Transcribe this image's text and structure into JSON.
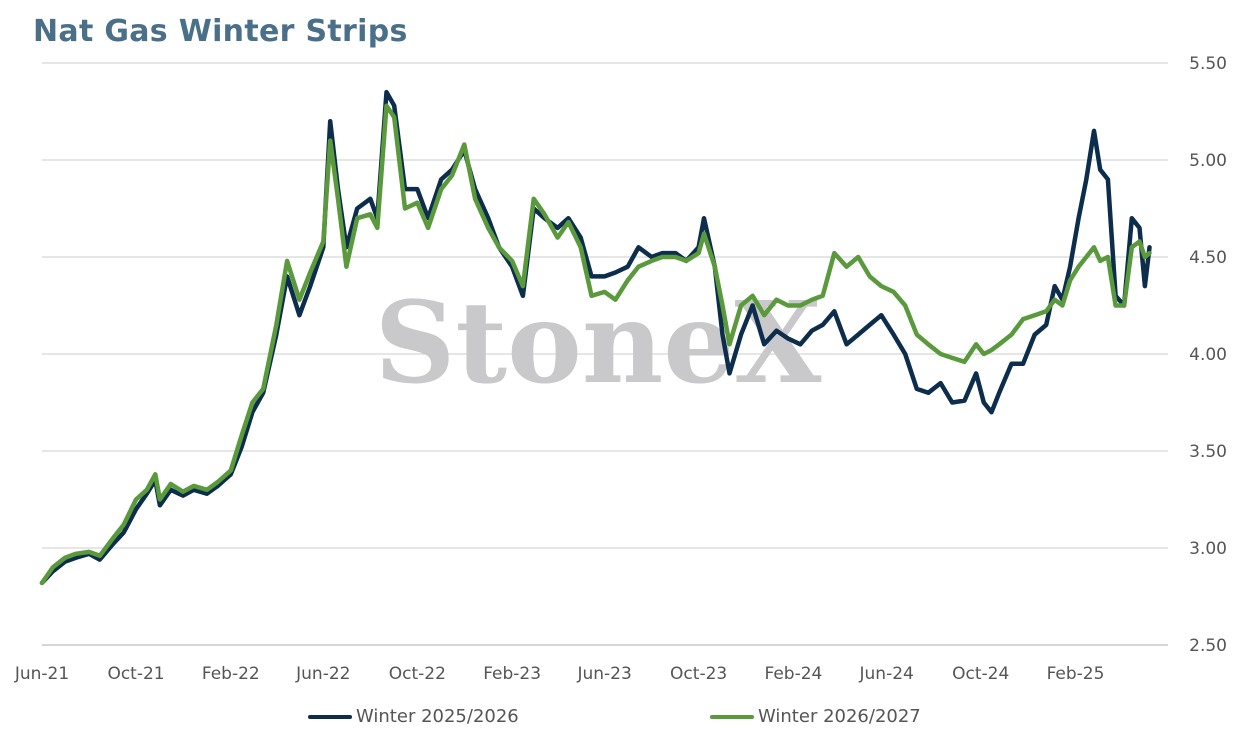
{
  "chart_data": {
    "type": "line",
    "title": "Nat Gas Winter Strips",
    "watermark": "StoneX",
    "x_tick_labels": [
      "Jun-21",
      "Oct-21",
      "Feb-22",
      "Jun-22",
      "Oct-22",
      "Feb-23",
      "Jun-23",
      "Oct-23",
      "Feb-24",
      "Jun-24",
      "Oct-24",
      "Feb-25"
    ],
    "x_range": [
      "2021-06-01",
      "2025-06-01"
    ],
    "y_tick_labels": [
      "2.50",
      "3.00",
      "3.50",
      "4.00",
      "4.50",
      "5.00",
      "5.50"
    ],
    "ylim": [
      2.5,
      5.5
    ],
    "y_axis_side": "right",
    "grid": "horizontal",
    "legend_position": "bottom",
    "series": [
      {
        "name": "Winter 2025/2026",
        "color": "#0d2d4d",
        "points": [
          [
            "2021-06-01",
            2.82
          ],
          [
            "2021-06-15",
            2.88
          ],
          [
            "2021-07-01",
            2.93
          ],
          [
            "2021-07-15",
            2.95
          ],
          [
            "2021-08-01",
            2.97
          ],
          [
            "2021-08-15",
            2.94
          ],
          [
            "2021-09-01",
            3.02
          ],
          [
            "2021-09-15",
            3.08
          ],
          [
            "2021-10-01",
            3.2
          ],
          [
            "2021-10-15",
            3.28
          ],
          [
            "2021-10-26",
            3.35
          ],
          [
            "2021-11-01",
            3.22
          ],
          [
            "2021-11-15",
            3.3
          ],
          [
            "2021-12-01",
            3.27
          ],
          [
            "2021-12-15",
            3.3
          ],
          [
            "2022-01-01",
            3.28
          ],
          [
            "2022-01-15",
            3.32
          ],
          [
            "2022-02-01",
            3.38
          ],
          [
            "2022-02-15",
            3.52
          ],
          [
            "2022-03-01",
            3.7
          ],
          [
            "2022-03-15",
            3.8
          ],
          [
            "2022-04-01",
            4.1
          ],
          [
            "2022-04-15",
            4.4
          ],
          [
            "2022-05-01",
            4.2
          ],
          [
            "2022-05-15",
            4.35
          ],
          [
            "2022-06-01",
            4.55
          ],
          [
            "2022-06-10",
            5.2
          ],
          [
            "2022-06-20",
            4.85
          ],
          [
            "2022-07-01",
            4.55
          ],
          [
            "2022-07-15",
            4.75
          ],
          [
            "2022-08-01",
            4.8
          ],
          [
            "2022-08-10",
            4.7
          ],
          [
            "2022-08-22",
            5.35
          ],
          [
            "2022-09-01",
            5.28
          ],
          [
            "2022-09-15",
            4.85
          ],
          [
            "2022-10-01",
            4.85
          ],
          [
            "2022-10-15",
            4.7
          ],
          [
            "2022-11-01",
            4.9
          ],
          [
            "2022-11-15",
            4.95
          ],
          [
            "2022-12-01",
            5.05
          ],
          [
            "2022-12-15",
            4.85
          ],
          [
            "2023-01-01",
            4.7
          ],
          [
            "2023-01-15",
            4.55
          ],
          [
            "2023-02-01",
            4.45
          ],
          [
            "2023-02-15",
            4.3
          ],
          [
            "2023-03-01",
            4.75
          ],
          [
            "2023-03-15",
            4.7
          ],
          [
            "2023-04-01",
            4.65
          ],
          [
            "2023-04-15",
            4.7
          ],
          [
            "2023-05-01",
            4.6
          ],
          [
            "2023-05-15",
            4.4
          ],
          [
            "2023-06-01",
            4.4
          ],
          [
            "2023-06-15",
            4.42
          ],
          [
            "2023-07-01",
            4.45
          ],
          [
            "2023-07-15",
            4.55
          ],
          [
            "2023-08-01",
            4.5
          ],
          [
            "2023-08-15",
            4.52
          ],
          [
            "2023-09-01",
            4.52
          ],
          [
            "2023-09-15",
            4.48
          ],
          [
            "2023-10-01",
            4.55
          ],
          [
            "2023-10-08",
            4.7
          ],
          [
            "2023-10-22",
            4.45
          ],
          [
            "2023-11-01",
            4.1
          ],
          [
            "2023-11-10",
            3.9
          ],
          [
            "2023-11-25",
            4.1
          ],
          [
            "2023-12-10",
            4.25
          ],
          [
            "2023-12-25",
            4.05
          ],
          [
            "2024-01-10",
            4.12
          ],
          [
            "2024-01-25",
            4.08
          ],
          [
            "2024-02-10",
            4.05
          ],
          [
            "2024-02-25",
            4.12
          ],
          [
            "2024-03-10",
            4.15
          ],
          [
            "2024-03-25",
            4.22
          ],
          [
            "2024-04-10",
            4.05
          ],
          [
            "2024-04-25",
            4.1
          ],
          [
            "2024-05-10",
            4.15
          ],
          [
            "2024-05-25",
            4.2
          ],
          [
            "2024-06-10",
            4.1
          ],
          [
            "2024-06-25",
            4.0
          ],
          [
            "2024-07-10",
            3.82
          ],
          [
            "2024-07-25",
            3.8
          ],
          [
            "2024-08-10",
            3.85
          ],
          [
            "2024-08-25",
            3.75
          ],
          [
            "2024-09-10",
            3.76
          ],
          [
            "2024-09-25",
            3.9
          ],
          [
            "2024-10-05",
            3.75
          ],
          [
            "2024-10-15",
            3.7
          ],
          [
            "2024-10-25",
            3.8
          ],
          [
            "2024-11-10",
            3.95
          ],
          [
            "2024-11-25",
            3.95
          ],
          [
            "2024-12-10",
            4.1
          ],
          [
            "2024-12-25",
            4.15
          ],
          [
            "2025-01-05",
            4.35
          ],
          [
            "2025-01-15",
            4.28
          ],
          [
            "2025-01-25",
            4.45
          ],
          [
            "2025-02-05",
            4.7
          ],
          [
            "2025-02-15",
            4.9
          ],
          [
            "2025-02-25",
            5.15
          ],
          [
            "2025-03-05",
            4.95
          ],
          [
            "2025-03-15",
            4.9
          ],
          [
            "2025-03-25",
            4.3
          ],
          [
            "2025-04-05",
            4.25
          ],
          [
            "2025-04-15",
            4.7
          ],
          [
            "2025-04-25",
            4.65
          ],
          [
            "2025-05-02",
            4.35
          ],
          [
            "2025-05-08",
            4.55
          ]
        ]
      },
      {
        "name": "Winter 2026/2027",
        "color": "#5a9a3c",
        "points": [
          [
            "2021-06-01",
            2.82
          ],
          [
            "2021-06-15",
            2.9
          ],
          [
            "2021-07-01",
            2.95
          ],
          [
            "2021-07-15",
            2.97
          ],
          [
            "2021-08-01",
            2.98
          ],
          [
            "2021-08-15",
            2.96
          ],
          [
            "2021-09-01",
            3.05
          ],
          [
            "2021-09-15",
            3.12
          ],
          [
            "2021-10-01",
            3.25
          ],
          [
            "2021-10-15",
            3.3
          ],
          [
            "2021-10-26",
            3.38
          ],
          [
            "2021-11-01",
            3.25
          ],
          [
            "2021-11-15",
            3.33
          ],
          [
            "2021-12-01",
            3.29
          ],
          [
            "2021-12-15",
            3.32
          ],
          [
            "2022-01-01",
            3.3
          ],
          [
            "2022-01-15",
            3.34
          ],
          [
            "2022-02-01",
            3.4
          ],
          [
            "2022-02-15",
            3.58
          ],
          [
            "2022-03-01",
            3.75
          ],
          [
            "2022-03-15",
            3.82
          ],
          [
            "2022-04-01",
            4.15
          ],
          [
            "2022-04-15",
            4.48
          ],
          [
            "2022-05-01",
            4.28
          ],
          [
            "2022-05-15",
            4.42
          ],
          [
            "2022-06-01",
            4.58
          ],
          [
            "2022-06-10",
            5.1
          ],
          [
            "2022-06-20",
            4.8
          ],
          [
            "2022-07-01",
            4.45
          ],
          [
            "2022-07-15",
            4.7
          ],
          [
            "2022-08-01",
            4.72
          ],
          [
            "2022-08-10",
            4.65
          ],
          [
            "2022-08-22",
            5.28
          ],
          [
            "2022-09-01",
            5.22
          ],
          [
            "2022-09-15",
            4.75
          ],
          [
            "2022-10-01",
            4.78
          ],
          [
            "2022-10-15",
            4.65
          ],
          [
            "2022-11-01",
            4.85
          ],
          [
            "2022-11-15",
            4.92
          ],
          [
            "2022-12-01",
            5.08
          ],
          [
            "2022-12-15",
            4.8
          ],
          [
            "2023-01-01",
            4.65
          ],
          [
            "2023-01-15",
            4.55
          ],
          [
            "2023-02-01",
            4.48
          ],
          [
            "2023-02-15",
            4.35
          ],
          [
            "2023-03-01",
            4.8
          ],
          [
            "2023-03-15",
            4.72
          ],
          [
            "2023-04-01",
            4.6
          ],
          [
            "2023-04-15",
            4.68
          ],
          [
            "2023-05-01",
            4.55
          ],
          [
            "2023-05-15",
            4.3
          ],
          [
            "2023-06-01",
            4.32
          ],
          [
            "2023-06-15",
            4.28
          ],
          [
            "2023-07-01",
            4.38
          ],
          [
            "2023-07-15",
            4.45
          ],
          [
            "2023-08-01",
            4.48
          ],
          [
            "2023-08-15",
            4.5
          ],
          [
            "2023-09-01",
            4.5
          ],
          [
            "2023-09-15",
            4.48
          ],
          [
            "2023-10-01",
            4.52
          ],
          [
            "2023-10-08",
            4.62
          ],
          [
            "2023-10-22",
            4.45
          ],
          [
            "2023-11-01",
            4.25
          ],
          [
            "2023-11-10",
            4.05
          ],
          [
            "2023-11-25",
            4.25
          ],
          [
            "2023-12-10",
            4.3
          ],
          [
            "2023-12-25",
            4.2
          ],
          [
            "2024-01-10",
            4.28
          ],
          [
            "2024-01-25",
            4.25
          ],
          [
            "2024-02-10",
            4.25
          ],
          [
            "2024-02-25",
            4.28
          ],
          [
            "2024-03-10",
            4.3
          ],
          [
            "2024-03-25",
            4.52
          ],
          [
            "2024-04-10",
            4.45
          ],
          [
            "2024-04-25",
            4.5
          ],
          [
            "2024-05-10",
            4.4
          ],
          [
            "2024-05-25",
            4.35
          ],
          [
            "2024-06-10",
            4.32
          ],
          [
            "2024-06-25",
            4.25
          ],
          [
            "2024-07-10",
            4.1
          ],
          [
            "2024-07-25",
            4.05
          ],
          [
            "2024-08-10",
            4.0
          ],
          [
            "2024-08-25",
            3.98
          ],
          [
            "2024-09-10",
            3.96
          ],
          [
            "2024-09-25",
            4.05
          ],
          [
            "2024-10-05",
            4.0
          ],
          [
            "2024-10-15",
            4.02
          ],
          [
            "2024-10-25",
            4.05
          ],
          [
            "2024-11-10",
            4.1
          ],
          [
            "2024-11-25",
            4.18
          ],
          [
            "2024-12-10",
            4.2
          ],
          [
            "2024-12-25",
            4.22
          ],
          [
            "2025-01-05",
            4.28
          ],
          [
            "2025-01-15",
            4.25
          ],
          [
            "2025-01-25",
            4.38
          ],
          [
            "2025-02-05",
            4.45
          ],
          [
            "2025-02-15",
            4.5
          ],
          [
            "2025-02-25",
            4.55
          ],
          [
            "2025-03-05",
            4.48
          ],
          [
            "2025-03-15",
            4.5
          ],
          [
            "2025-03-25",
            4.25
          ],
          [
            "2025-04-05",
            4.25
          ],
          [
            "2025-04-15",
            4.55
          ],
          [
            "2025-04-25",
            4.58
          ],
          [
            "2025-05-02",
            4.5
          ],
          [
            "2025-05-08",
            4.52
          ]
        ]
      }
    ]
  }
}
